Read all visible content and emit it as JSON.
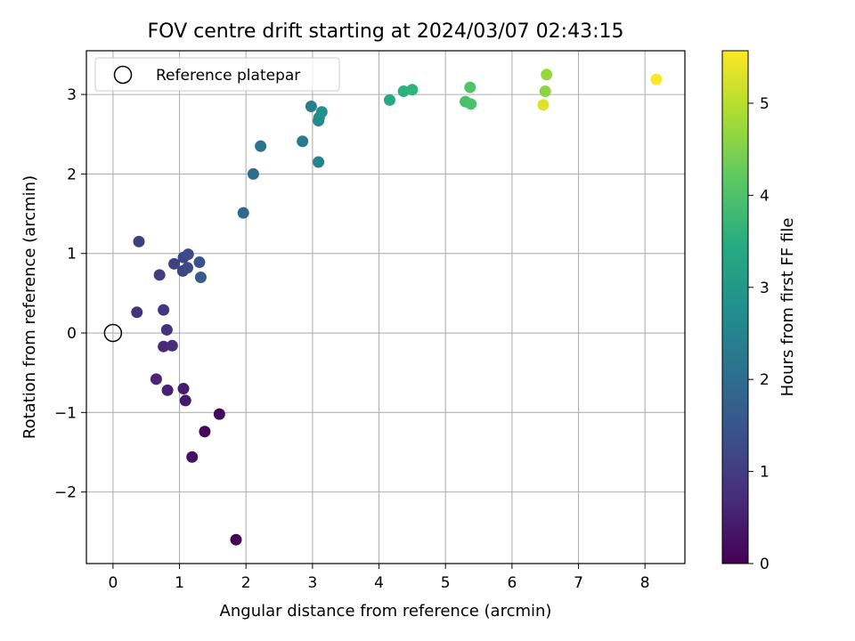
{
  "chart_data": {
    "type": "scatter",
    "title": "FOV centre drift starting at 2024/03/07 02:43:15",
    "xlabel": "Angular distance from reference (arcmin)",
    "ylabel": "Rotation from reference (arcmin)",
    "xlim": [
      -0.4,
      8.6
    ],
    "ylim": [
      -2.9,
      3.55
    ],
    "xticks": [
      0,
      1,
      2,
      3,
      4,
      5,
      6,
      7,
      8
    ],
    "yticks": [
      -2,
      -1,
      0,
      1,
      2,
      3
    ],
    "ytick_labels": [
      "−2",
      "−1",
      "0",
      "1",
      "2",
      "3"
    ],
    "grid": true,
    "legend": {
      "position": "top-left",
      "label": "Reference platepar"
    },
    "reference_point": {
      "x": 0,
      "y": 0
    },
    "colorbar": {
      "label": "Hours from first FF file",
      "colormap": "viridis",
      "range": [
        0,
        5.57
      ],
      "ticks": [
        0,
        1,
        2,
        3,
        4,
        5
      ]
    },
    "points": [
      {
        "x": 1.85,
        "y": -2.6,
        "c": 0.03
      },
      {
        "x": 1.38,
        "y": -1.24,
        "c": 0.1
      },
      {
        "x": 1.6,
        "y": -1.02,
        "c": 0.15
      },
      {
        "x": 1.19,
        "y": -1.56,
        "c": 0.25
      },
      {
        "x": 1.09,
        "y": -0.85,
        "c": 0.4
      },
      {
        "x": 1.06,
        "y": -0.7,
        "c": 0.45
      },
      {
        "x": 0.82,
        "y": -0.72,
        "c": 0.55
      },
      {
        "x": 0.65,
        "y": -0.58,
        "c": 0.6
      },
      {
        "x": 0.76,
        "y": -0.17,
        "c": 0.7
      },
      {
        "x": 0.89,
        "y": -0.16,
        "c": 0.72
      },
      {
        "x": 0.81,
        "y": 0.04,
        "c": 0.8
      },
      {
        "x": 0.36,
        "y": 0.26,
        "c": 0.85
      },
      {
        "x": 0.76,
        "y": 0.29,
        "c": 0.9
      },
      {
        "x": 0.7,
        "y": 0.73,
        "c": 1.0
      },
      {
        "x": 0.39,
        "y": 1.15,
        "c": 1.05
      },
      {
        "x": 0.92,
        "y": 0.87,
        "c": 1.1
      },
      {
        "x": 1.05,
        "y": 0.78,
        "c": 1.15
      },
      {
        "x": 1.06,
        "y": 0.95,
        "c": 1.2
      },
      {
        "x": 1.12,
        "y": 0.82,
        "c": 1.25
      },
      {
        "x": 1.13,
        "y": 0.99,
        "c": 1.3
      },
      {
        "x": 1.3,
        "y": 0.89,
        "c": 1.45
      },
      {
        "x": 1.32,
        "y": 0.7,
        "c": 1.6
      },
      {
        "x": 1.96,
        "y": 1.51,
        "c": 1.85
      },
      {
        "x": 2.11,
        "y": 2.0,
        "c": 2.0
      },
      {
        "x": 2.22,
        "y": 2.35,
        "c": 2.1
      },
      {
        "x": 2.85,
        "y": 2.41,
        "c": 2.3
      },
      {
        "x": 2.98,
        "y": 2.85,
        "c": 2.4
      },
      {
        "x": 3.09,
        "y": 2.15,
        "c": 2.5
      },
      {
        "x": 3.09,
        "y": 2.67,
        "c": 2.6
      },
      {
        "x": 3.1,
        "y": 2.71,
        "c": 2.7
      },
      {
        "x": 3.14,
        "y": 2.78,
        "c": 2.8
      },
      {
        "x": 4.16,
        "y": 2.93,
        "c": 3.4
      },
      {
        "x": 4.37,
        "y": 3.04,
        "c": 3.55
      },
      {
        "x": 4.5,
        "y": 3.06,
        "c": 3.6
      },
      {
        "x": 5.3,
        "y": 2.91,
        "c": 3.95
      },
      {
        "x": 5.38,
        "y": 2.88,
        "c": 4.0
      },
      {
        "x": 5.37,
        "y": 3.09,
        "c": 4.05
      },
      {
        "x": 6.5,
        "y": 3.04,
        "c": 4.6
      },
      {
        "x": 6.52,
        "y": 3.25,
        "c": 4.7
      },
      {
        "x": 6.47,
        "y": 2.87,
        "c": 5.3
      },
      {
        "x": 8.17,
        "y": 3.19,
        "c": 5.55
      }
    ]
  }
}
